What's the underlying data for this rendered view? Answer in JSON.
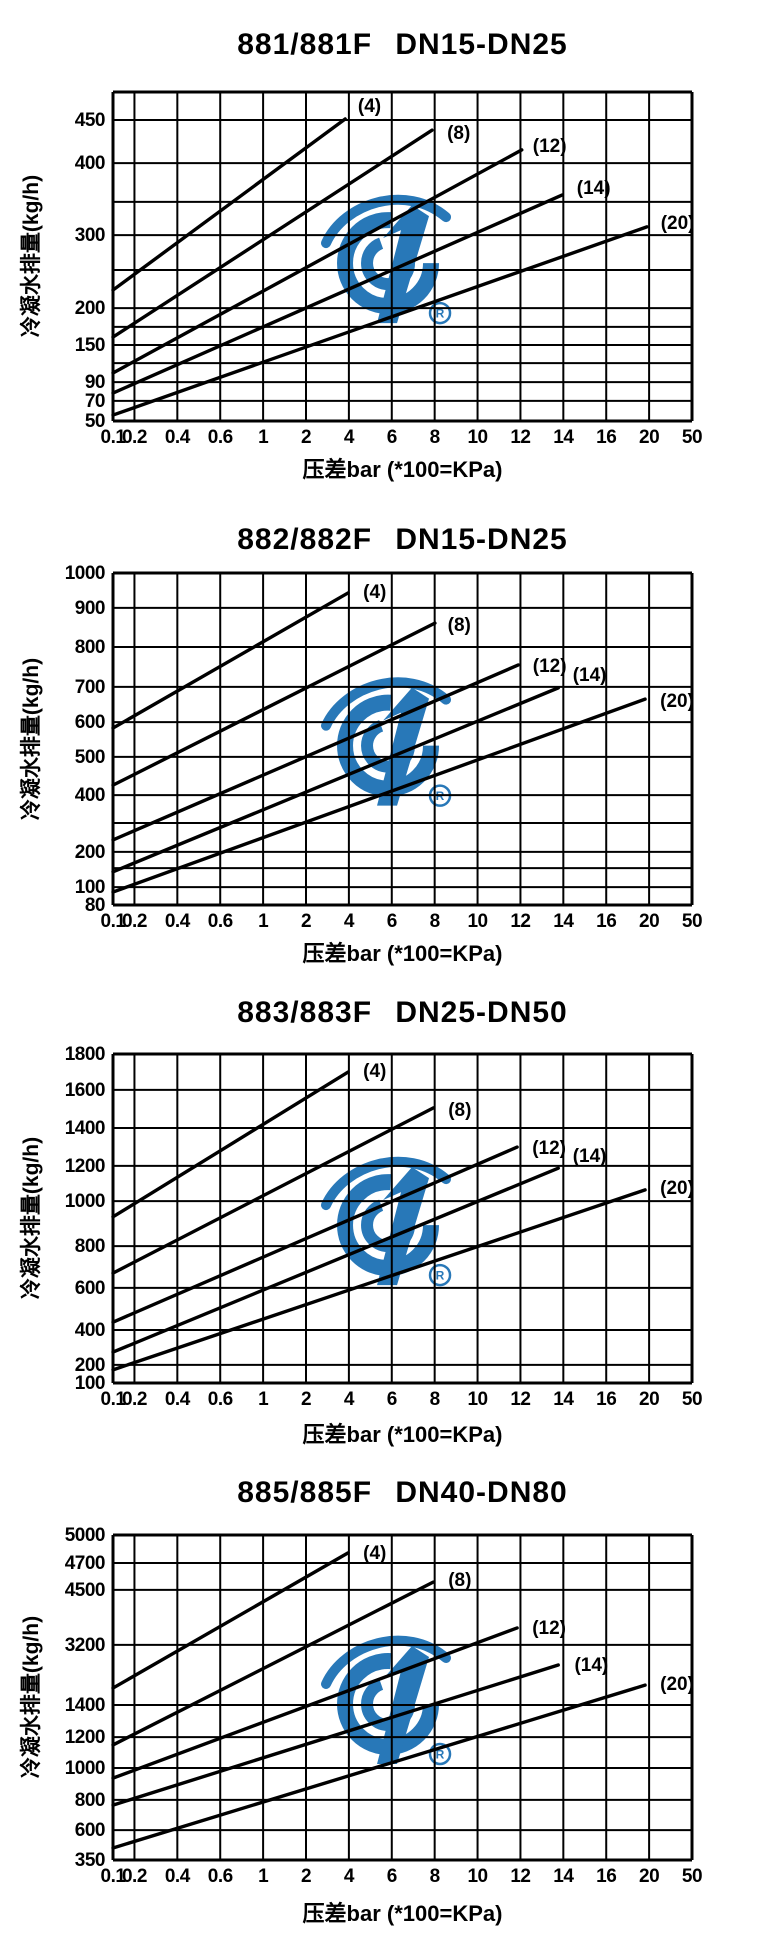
{
  "page": {
    "background": "#ffffff",
    "line_color": "#000000"
  },
  "watermark": {
    "name": "brand-logo",
    "color": "#2878b8",
    "registered_mark": "R"
  },
  "charts": [
    {
      "title": "881/881F DN15-DN25",
      "x_title": "压差bar (*100=KPa)",
      "y_title": "冷凝水排量(kg/h)",
      "x_ticks": [
        "0.1",
        "0.2",
        "0.4",
        "0.6",
        "1",
        "2",
        "4",
        "6",
        "8",
        "10",
        "12",
        "14",
        "16",
        "20",
        "50"
      ],
      "y_ticks": [
        {
          "label": "",
          "f": 0.0
        },
        {
          "label": "450",
          "f": 0.085
        },
        {
          "label": "400",
          "f": 0.216
        },
        {
          "label": "",
          "f": 0.334
        },
        {
          "label": "300",
          "f": 0.435
        },
        {
          "label": "",
          "f": 0.541
        },
        {
          "label": "200",
          "f": 0.657
        },
        {
          "label": "",
          "f": 0.714
        },
        {
          "label": "150",
          "f": 0.769
        },
        {
          "label": "",
          "f": 0.824
        },
        {
          "label": "90",
          "f": 0.882
        },
        {
          "label": "70",
          "f": 0.939
        },
        {
          "label": "50",
          "f": 1.0
        }
      ],
      "lines": [
        {
          "label": "(4)",
          "x1": 0,
          "y1": 0.602,
          "x2": 0.401,
          "y2": 0.082,
          "lx": 0.423,
          "ly": 0.04
        },
        {
          "label": "(8)",
          "x1": 0,
          "y1": 0.745,
          "x2": 0.551,
          "y2": 0.116,
          "lx": 0.577,
          "ly": 0.122
        },
        {
          "label": "(12)",
          "x1": 0,
          "y1": 0.854,
          "x2": 0.706,
          "y2": 0.176,
          "lx": 0.725,
          "ly": 0.161
        },
        {
          "label": "(14)",
          "x1": 0,
          "y1": 0.915,
          "x2": 0.776,
          "y2": 0.313,
          "lx": 0.801,
          "ly": 0.289
        },
        {
          "label": "(20)",
          "x1": 0,
          "y1": 0.982,
          "x2": 0.922,
          "y2": 0.41,
          "lx": 0.946,
          "ly": 0.395
        }
      ]
    },
    {
      "title": "882/882F DN15-DN25",
      "x_title": "压差bar (*100=KPa)",
      "y_title": "冷凝水排量(kg/h)",
      "x_ticks": [
        "0.1",
        "0.2",
        "0.4",
        "0.6",
        "1",
        "2",
        "4",
        "6",
        "8",
        "10",
        "12",
        "14",
        "16",
        "20",
        "50"
      ],
      "y_ticks": [
        {
          "label": "1000",
          "f": 0.0
        },
        {
          "label": "900",
          "f": 0.105
        },
        {
          "label": "800",
          "f": 0.223
        },
        {
          "label": "700",
          "f": 0.343
        },
        {
          "label": "600",
          "f": 0.449
        },
        {
          "label": "500",
          "f": 0.554
        },
        {
          "label": "400",
          "f": 0.669
        },
        {
          "label": "",
          "f": 0.753
        },
        {
          "label": "200",
          "f": 0.84
        },
        {
          "label": "",
          "f": 0.889
        },
        {
          "label": "100",
          "f": 0.946
        },
        {
          "label": "80",
          "f": 1.0
        }
      ],
      "lines": [
        {
          "label": "(4)",
          "x1": 0,
          "y1": 0.467,
          "x2": 0.406,
          "y2": 0.06,
          "lx": 0.432,
          "ly": 0.054
        },
        {
          "label": "(8)",
          "x1": 0,
          "y1": 0.639,
          "x2": 0.556,
          "y2": 0.151,
          "lx": 0.578,
          "ly": 0.154
        },
        {
          "label": "(12)",
          "x1": 0,
          "y1": 0.804,
          "x2": 0.7,
          "y2": 0.277,
          "lx": 0.725,
          "ly": 0.277
        },
        {
          "label": "(14)",
          "x1": 0,
          "y1": 0.9,
          "x2": 0.769,
          "y2": 0.346,
          "lx": 0.794,
          "ly": 0.304
        },
        {
          "label": "(20)",
          "x1": 0,
          "y1": 0.961,
          "x2": 0.919,
          "y2": 0.38,
          "lx": 0.945,
          "ly": 0.383
        }
      ]
    },
    {
      "title": "883/883F DN25-DN50",
      "x_title": "压差bar (*100=KPa)",
      "y_title": "冷凝水排量(kg/h)",
      "x_ticks": [
        "0.1",
        "0.2",
        "0.4",
        "0.6",
        "1",
        "2",
        "4",
        "6",
        "8",
        "10",
        "12",
        "14",
        "16",
        "20",
        "50"
      ],
      "y_ticks": [
        {
          "label": "1800",
          "f": 0.0
        },
        {
          "label": "1600",
          "f": 0.109
        },
        {
          "label": "1400",
          "f": 0.225
        },
        {
          "label": "1200",
          "f": 0.34
        },
        {
          "label": "1000",
          "f": 0.447
        },
        {
          "label": "800",
          "f": 0.584
        },
        {
          "label": "600",
          "f": 0.711
        },
        {
          "label": "400",
          "f": 0.839
        },
        {
          "label": "200",
          "f": 0.945
        },
        {
          "label": "100",
          "f": 1.0
        }
      ],
      "lines": [
        {
          "label": "(4)",
          "x1": 0,
          "y1": 0.495,
          "x2": 0.406,
          "y2": 0.055,
          "lx": 0.432,
          "ly": 0.049
        },
        {
          "label": "(8)",
          "x1": 0,
          "y1": 0.666,
          "x2": 0.553,
          "y2": 0.164,
          "lx": 0.579,
          "ly": 0.167
        },
        {
          "label": "(12)",
          "x1": 0,
          "y1": 0.815,
          "x2": 0.698,
          "y2": 0.283,
          "lx": 0.724,
          "ly": 0.283
        },
        {
          "label": "(14)",
          "x1": 0,
          "y1": 0.906,
          "x2": 0.769,
          "y2": 0.347,
          "lx": 0.794,
          "ly": 0.307
        },
        {
          "label": "(20)",
          "x1": 0,
          "y1": 0.96,
          "x2": 0.919,
          "y2": 0.413,
          "lx": 0.945,
          "ly": 0.404
        }
      ]
    },
    {
      "title": "885/885F DN40-DN80",
      "x_title": "压差bar (*100=KPa)",
      "y_title": "冷凝水排量(kg/h)",
      "x_ticks": [
        "0.1",
        "0.2",
        "0.4",
        "0.6",
        "1",
        "2",
        "4",
        "6",
        "8",
        "10",
        "12",
        "14",
        "16",
        "20",
        "50"
      ],
      "y_ticks": [
        {
          "label": "5000",
          "f": 0.0
        },
        {
          "label": "4700",
          "f": 0.086
        },
        {
          "label": "4500",
          "f": 0.169
        },
        {
          "label": "3200",
          "f": 0.338
        },
        {
          "label": "1400",
          "f": 0.523
        },
        {
          "label": "1200",
          "f": 0.622
        },
        {
          "label": "1000",
          "f": 0.717
        },
        {
          "label": "800",
          "f": 0.815
        },
        {
          "label": "600",
          "f": 0.908
        },
        {
          "label": "350",
          "f": 1.0
        }
      ],
      "lines": [
        {
          "label": "(4)",
          "x1": 0,
          "y1": 0.471,
          "x2": 0.406,
          "y2": 0.055,
          "lx": 0.432,
          "ly": 0.052
        },
        {
          "label": "(8)",
          "x1": 0,
          "y1": 0.646,
          "x2": 0.553,
          "y2": 0.145,
          "lx": 0.579,
          "ly": 0.135
        },
        {
          "label": "(12)",
          "x1": 0,
          "y1": 0.748,
          "x2": 0.698,
          "y2": 0.286,
          "lx": 0.724,
          "ly": 0.283
        },
        {
          "label": "(14)",
          "x1": 0,
          "y1": 0.831,
          "x2": 0.769,
          "y2": 0.4,
          "lx": 0.797,
          "ly": 0.397
        },
        {
          "label": "(20)",
          "x1": 0,
          "y1": 0.963,
          "x2": 0.919,
          "y2": 0.462,
          "lx": 0.945,
          "ly": 0.455
        }
      ]
    }
  ],
  "chart_data": [
    {
      "type": "line",
      "title": "881/881F DN15-DN25",
      "xlabel": "压差bar (*100=KPa)",
      "ylabel": "冷凝水排量(kg/h)",
      "x_scale": "log-like, ticks evenly spaced",
      "x_ticks": [
        0.1,
        0.2,
        0.4,
        0.6,
        1,
        2,
        4,
        6,
        8,
        10,
        12,
        14,
        16,
        20,
        50
      ],
      "y_tick_labels": [
        50,
        70,
        90,
        150,
        200,
        300,
        400,
        450
      ],
      "series": [
        {
          "name": "(4)",
          "points": [
            [
              0.1,
              225
            ],
            [
              4,
              455
            ]
          ]
        },
        {
          "name": "(8)",
          "points": [
            [
              0.1,
              160
            ],
            [
              8,
              440
            ]
          ]
        },
        {
          "name": "(12)",
          "points": [
            [
              0.1,
              95
            ],
            [
              12,
              420
            ]
          ]
        },
        {
          "name": "(14)",
          "points": [
            [
              0.1,
              78
            ],
            [
              14,
              355
            ]
          ]
        },
        {
          "name": "(20)",
          "points": [
            [
              0.1,
              55
            ],
            [
              20,
              300
            ]
          ]
        }
      ]
    },
    {
      "type": "line",
      "title": "882/882F DN15-DN25",
      "xlabel": "压差bar (*100=KPa)",
      "ylabel": "冷凝水排量(kg/h)",
      "x_scale": "log-like, ticks evenly spaced",
      "x_ticks": [
        0.1,
        0.2,
        0.4,
        0.6,
        1,
        2,
        4,
        6,
        8,
        10,
        12,
        14,
        16,
        20,
        50
      ],
      "y_tick_labels": [
        80,
        100,
        200,
        400,
        500,
        600,
        700,
        800,
        900,
        1000
      ],
      "series": [
        {
          "name": "(4)",
          "points": [
            [
              0.1,
              585
            ],
            [
              4,
              950
            ]
          ]
        },
        {
          "name": "(8)",
          "points": [
            [
              0.1,
              420
            ],
            [
              8,
              860
            ]
          ]
        },
        {
          "name": "(12)",
          "points": [
            [
              0.1,
              230
            ],
            [
              12,
              755
            ]
          ]
        },
        {
          "name": "(14)",
          "points": [
            [
              0.1,
              140
            ],
            [
              14,
              700
            ]
          ]
        },
        {
          "name": "(20)",
          "points": [
            [
              0.1,
              95
            ],
            [
              20,
              660
            ]
          ]
        }
      ]
    },
    {
      "type": "line",
      "title": "883/883F DN25-DN50",
      "xlabel": "压差bar (*100=KPa)",
      "ylabel": "冷凝水排量(kg/h)",
      "x_scale": "log-like, ticks evenly spaced",
      "x_ticks": [
        0.1,
        0.2,
        0.4,
        0.6,
        1,
        2,
        4,
        6,
        8,
        10,
        12,
        14,
        16,
        20,
        50
      ],
      "y_tick_labels": [
        100,
        200,
        400,
        600,
        800,
        1000,
        1200,
        1400,
        1600,
        1800
      ],
      "series": [
        {
          "name": "(4)",
          "points": [
            [
              0.1,
              930
            ],
            [
              4,
              1700
            ]
          ]
        },
        {
          "name": "(8)",
          "points": [
            [
              0.1,
              670
            ],
            [
              8,
              1500
            ]
          ]
        },
        {
          "name": "(12)",
          "points": [
            [
              0.1,
              430
            ],
            [
              12,
              1300
            ]
          ]
        },
        {
          "name": "(14)",
          "points": [
            [
              0.1,
              270
            ],
            [
              14,
              1200
            ]
          ]
        },
        {
          "name": "(20)",
          "points": [
            [
              0.1,
              180
            ],
            [
              20,
              1050
            ]
          ]
        }
      ]
    },
    {
      "type": "line",
      "title": "885/885F DN40-DN80",
      "xlabel": "压差bar (*100=KPa)",
      "ylabel": "冷凝水排量(kg/h)",
      "x_scale": "log-like, ticks evenly spaced",
      "x_ticks": [
        0.1,
        0.2,
        0.4,
        0.6,
        1,
        2,
        4,
        6,
        8,
        10,
        12,
        14,
        16,
        20,
        50
      ],
      "y_tick_labels": [
        350,
        600,
        800,
        1000,
        1200,
        1400,
        3200,
        4500,
        4700,
        5000
      ],
      "series": [
        {
          "name": "(4)",
          "points": [
            [
              0.1,
              1800
            ],
            [
              4,
              4800
            ]
          ]
        },
        {
          "name": "(8)",
          "points": [
            [
              0.1,
              1150
            ],
            [
              8,
              4550
            ]
          ]
        },
        {
          "name": "(12)",
          "points": [
            [
              0.1,
              950
            ],
            [
              12,
              3400
            ]
          ]
        },
        {
          "name": "(14)",
          "points": [
            [
              0.1,
              780
            ],
            [
              14,
              2600
            ]
          ]
        },
        {
          "name": "(20)",
          "points": [
            [
              0.1,
              450
            ],
            [
              20,
              2000
            ]
          ]
        }
      ]
    }
  ]
}
